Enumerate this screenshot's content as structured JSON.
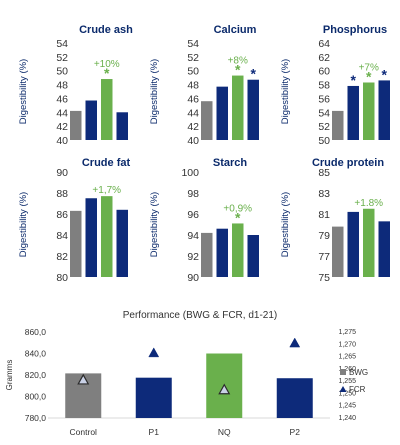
{
  "colors": {
    "gray": "#7f7f7f",
    "navy": "#0d2a7a",
    "green": "#6ab04c",
    "title": "#0b2a6b",
    "star_green": "#6ab04c",
    "star_navy": "#0d2a7a"
  },
  "chart_data": [
    {
      "type": "bar",
      "title": "Crude ash",
      "ylabel": "Digestibility (%)",
      "ylim": [
        40,
        54
      ],
      "yticks": [
        "54",
        "52",
        "50",
        "48",
        "46",
        "44",
        "42",
        "40"
      ],
      "values": [
        44.2,
        45.7,
        48.8,
        44.0
      ],
      "annotation": "+10%",
      "stars": [
        "",
        "",
        "*",
        ""
      ]
    },
    {
      "type": "bar",
      "title": "Calcium",
      "ylabel": "Digestibility (%)",
      "ylim": [
        40,
        54
      ],
      "yticks": [
        "54",
        "52",
        "50",
        "48",
        "46",
        "44",
        "42",
        "40"
      ],
      "values": [
        45.6,
        47.7,
        49.3,
        48.7
      ],
      "annotation": "+8%",
      "stars": [
        "",
        "",
        "*",
        "*"
      ]
    },
    {
      "type": "bar",
      "title": "Phosphorus",
      "ylabel": "Digestibility (%)",
      "ylim": [
        50,
        64
      ],
      "yticks": [
        "64",
        "62",
        "60",
        "58",
        "56",
        "54",
        "52",
        "50"
      ],
      "values": [
        54.2,
        57.8,
        58.3,
        58.6
      ],
      "annotation": "+7%",
      "stars": [
        "",
        "*",
        "*",
        "*"
      ]
    },
    {
      "type": "bar",
      "title": "Crude fat",
      "ylabel": "Digestibility (%)",
      "ylim": [
        80,
        90
      ],
      "yticks": [
        "90",
        "88",
        "86",
        "84",
        "82",
        "80"
      ],
      "values": [
        86.3,
        87.5,
        87.7,
        86.4
      ],
      "annotation": "+1,7%",
      "stars": [
        "",
        "",
        "",
        ""
      ]
    },
    {
      "type": "bar",
      "title": "Starch",
      "ylabel": "Digestibility (%)",
      "ylim": [
        90,
        100
      ],
      "yticks": [
        "100",
        "98",
        "96",
        "94",
        "92",
        "90"
      ],
      "values": [
        94.2,
        94.6,
        95.1,
        94.0
      ],
      "annotation": "+0,9%",
      "stars": [
        "",
        "",
        "*",
        ""
      ]
    },
    {
      "type": "bar",
      "title": "Crude protein",
      "ylabel": "Digestibility (%)",
      "ylim": [
        75,
        85
      ],
      "yticks": [
        "85",
        "83",
        "81",
        "79",
        "77",
        "75"
      ],
      "values": [
        79.8,
        81.2,
        81.5,
        80.3
      ],
      "annotation": "+1.8%",
      "stars": [
        "",
        "",
        "",
        ""
      ]
    },
    {
      "type": "bar+scatter",
      "title": "Performance (BWG & FCR, d1-21)",
      "ylabel": "Gramms",
      "categories": [
        "Control",
        "P1",
        "NQ",
        "P2"
      ],
      "ylim": [
        780,
        860
      ],
      "yticks": [
        "860,0",
        "840,0",
        "820,0",
        "800,0",
        "780,0"
      ],
      "y2lim": [
        1.24,
        1.275
      ],
      "y2ticks": [
        "1,275",
        "1,270",
        "1,265",
        "1,260",
        "1,255",
        "1,250",
        "1,245",
        "1,240"
      ],
      "series": [
        {
          "name": "BWG",
          "values": [
            821.5,
            817.5,
            840.0,
            817.0
          ]
        },
        {
          "name": "FCR",
          "values": [
            1.2555,
            1.2665,
            1.2515,
            1.2705
          ]
        }
      ]
    }
  ]
}
